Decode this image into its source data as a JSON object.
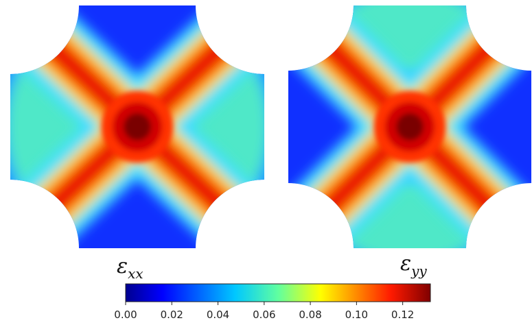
{
  "chart_data": {
    "type": "field",
    "panels": [
      {
        "symbol": "ε",
        "subscript": "xx"
      },
      {
        "symbol": "ε",
        "subscript": "yy"
      }
    ],
    "colorbar": {
      "lim": [
        0,
        0.132
      ],
      "ticks": [
        {
          "value": 0,
          "label": "0.00"
        },
        {
          "value": 0.02,
          "label": "0.02"
        },
        {
          "value": 0.04,
          "label": "0.04"
        },
        {
          "value": 0.06,
          "label": "0.06"
        },
        {
          "value": 0.08,
          "label": "0.08"
        },
        {
          "value": 0.1,
          "label": "0.10"
        },
        {
          "value": 0.12,
          "label": "0.12"
        }
      ]
    }
  }
}
